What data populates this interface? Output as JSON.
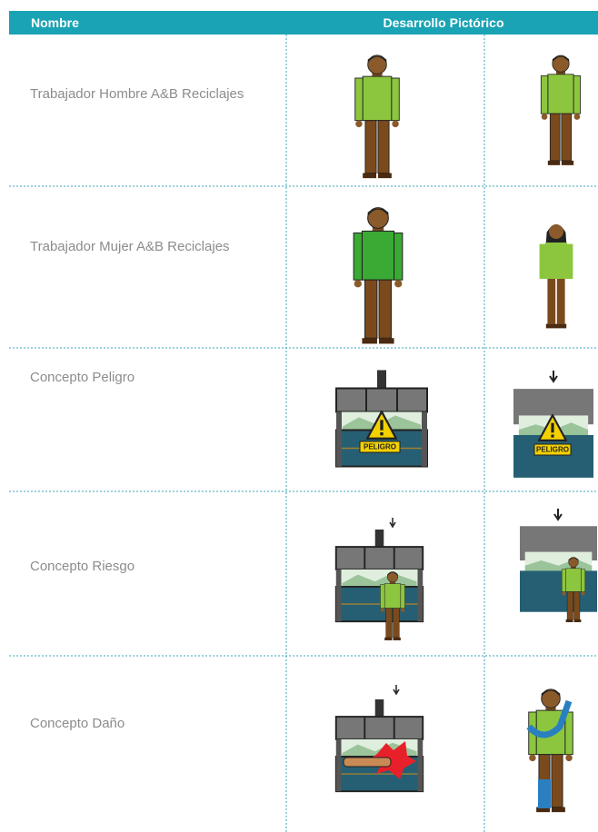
{
  "header": {
    "columns": [
      "Nombre",
      "Desarrollo Pictórico"
    ]
  },
  "rows": [
    {
      "label": "Trabajador Hombre A&B Reciclajes"
    },
    {
      "label": "Trabajador Mujer A&B Reciclajes"
    },
    {
      "label": "Concepto Peligro"
    },
    {
      "label": "Concepto Riesgo"
    },
    {
      "label": "Concepto Daño"
    }
  ],
  "illustration_text": "PELIGRO"
}
